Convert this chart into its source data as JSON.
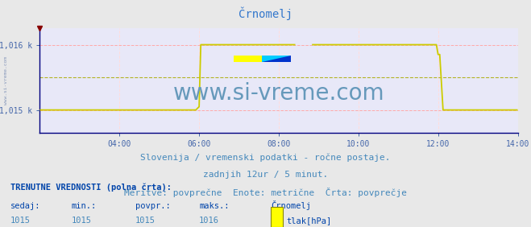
{
  "title": "Črnomelj",
  "title_color": "#3377cc",
  "bg_color": "#e8e8e8",
  "plot_bg_color": "#e8e8f8",
  "grid_color_h": "#ffaaaa",
  "grid_color_v": "#ffdddd",
  "axis_color": "#000080",
  "tick_color": "#4466aa",
  "xlim": [
    0,
    144
  ],
  "ylim": [
    1014.65,
    1016.25
  ],
  "yticks": [
    1015.0,
    1016.0
  ],
  "ytick_labels": [
    "1,015 k",
    "1,016 k"
  ],
  "xticks": [
    24,
    48,
    72,
    96,
    120,
    144
  ],
  "xtick_labels": [
    "04:00",
    "06:00",
    "08:00",
    "10:00",
    "12:00",
    "14:00"
  ],
  "line_color": "#cccc00",
  "watermark_text": "www.si-vreme.com",
  "watermark_color": "#6699bb",
  "watermark_fontsize": 20,
  "subtitle1": "Slovenija / vremenski podatki - ročne postaje.",
  "subtitle2": "zadnjih 12ur / 5 minut.",
  "subtitle3": "Meritve: povprečne  Enote: metrične  Črta: povprečje",
  "subtitle_color": "#4488bb",
  "subtitle_fontsize": 8.0,
  "footer_title": "TRENUTNE VREDNOSTI (polna črta):",
  "footer_col1_label": "sedaj:",
  "footer_col2_label": "min.:",
  "footer_col3_label": "povpr.:",
  "footer_col4_label": "maks.:",
  "footer_col5_label": "Črnomelj",
  "footer_col1_val": "1015",
  "footer_col2_val": "1015",
  "footer_col3_val": "1015",
  "footer_col4_val": "1016",
  "footer_legend_label": "tlak[hPa]",
  "footer_color": "#0044aa",
  "footer_val_color": "#4488bb",
  "left_label": "www.si-vreme.com",
  "left_label_color": "#8899bb",
  "avg_line_y": 1015.5,
  "avg_line_color": "#aaaa00",
  "legend_color1": "#ffff00",
  "logo_yellow": "#ffff00",
  "logo_cyan": "#00ccff",
  "logo_blue": "#0033cc"
}
